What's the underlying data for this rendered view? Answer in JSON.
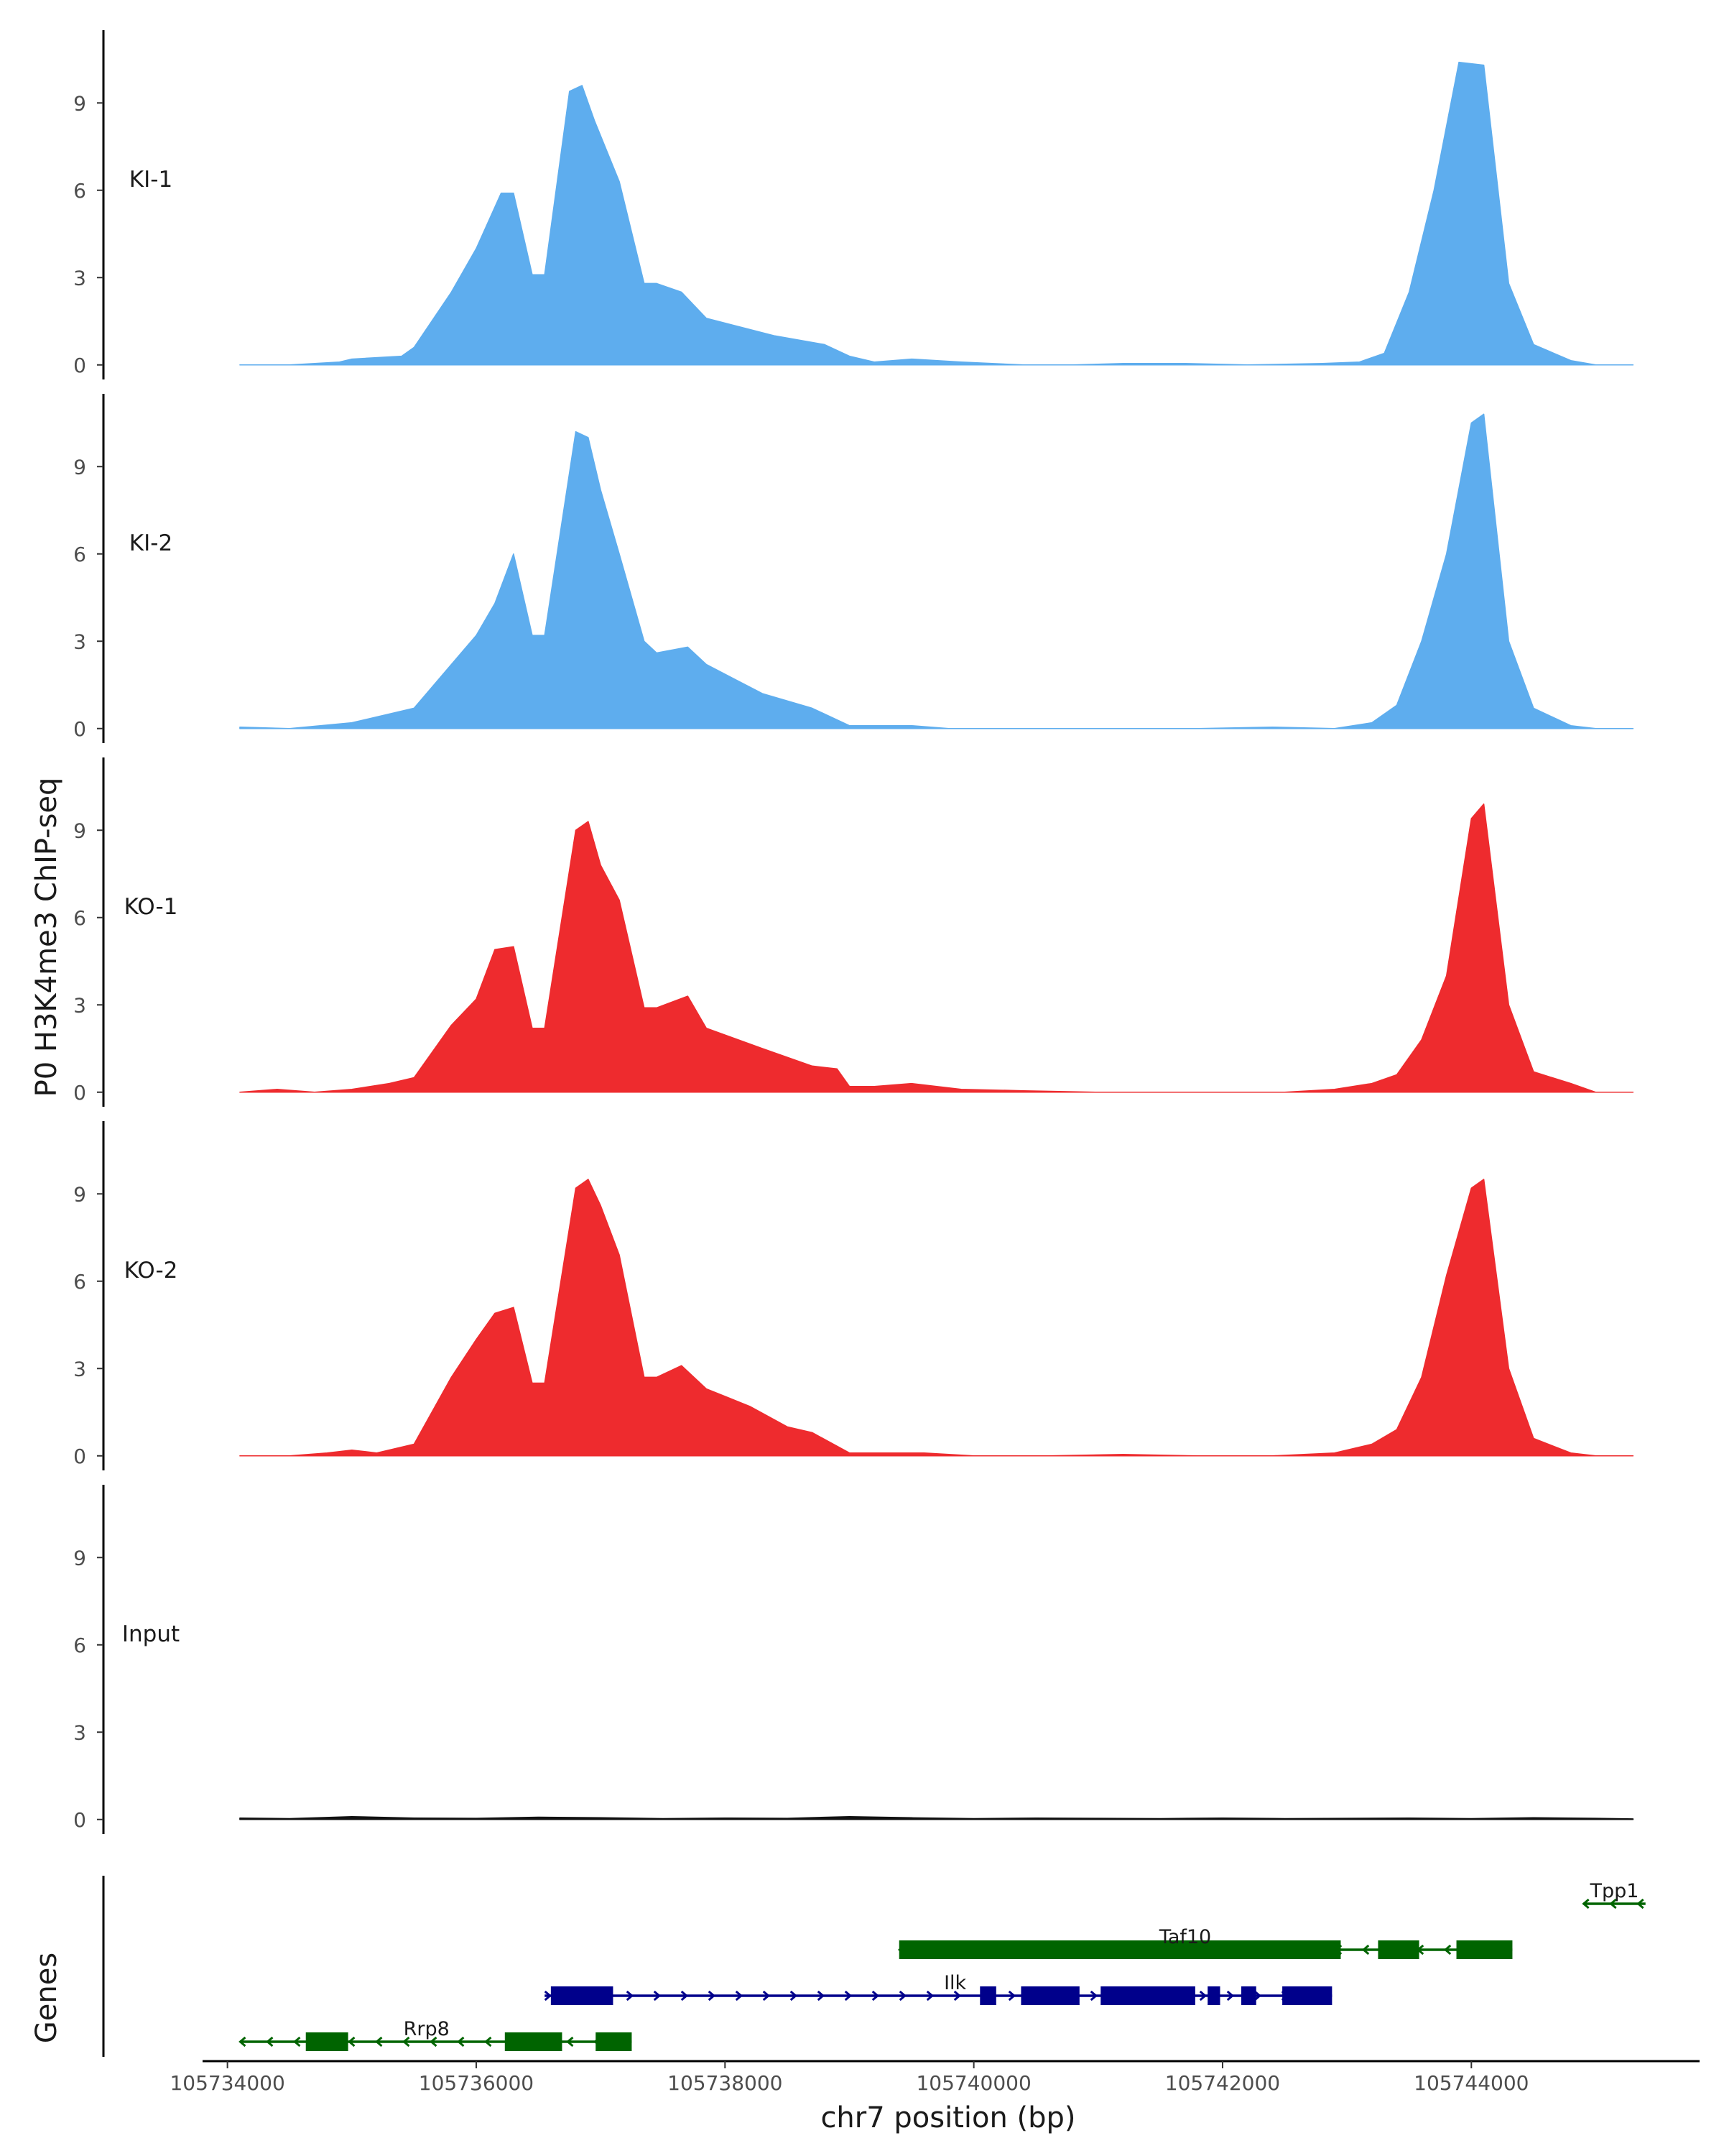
{
  "chart_data": {
    "type": "area",
    "y_axis_title": "P0 H3K4me3 ChIP-seq",
    "x_axis_title": "chr7 position (bp)",
    "x_range": [
      105733800,
      105745800
    ],
    "x_ticks": [
      105734000,
      105736000,
      105738000,
      105740000,
      105742000,
      105744000
    ],
    "y_range": [
      -0.5,
      11.5
    ],
    "y_ticks": [
      0,
      3,
      6,
      9
    ],
    "tracks": [
      {
        "name": "KI-1",
        "color": "#5eadee",
        "x": [
          105734100,
          105734500,
          105734900,
          105735000,
          105735400,
          105735500,
          105735800,
          105736000,
          105736200,
          105736300,
          105736450,
          105736550,
          105736750,
          105736850,
          105736950,
          105737150,
          105737350,
          105737450,
          105737650,
          105737850,
          105738400,
          105738800,
          105739000,
          105739200,
          105739500,
          105739900,
          105740400,
          105740800,
          105741200,
          105741700,
          105742200,
          105742800,
          105743100,
          105743300,
          105743500,
          105743700,
          105743900,
          105744100,
          105744300,
          105744500,
          105744800,
          105745000,
          105745300
        ],
        "values": [
          0,
          0,
          0.1,
          0.2,
          0.3,
          0.6,
          2.5,
          4.0,
          5.9,
          5.9,
          3.1,
          3.1,
          9.4,
          9.6,
          8.4,
          6.3,
          2.8,
          2.8,
          2.5,
          1.6,
          1.0,
          0.7,
          0.3,
          0.1,
          0.2,
          0.1,
          0,
          0,
          0.05,
          0.05,
          0,
          0.05,
          0.1,
          0.4,
          2.5,
          6.0,
          10.4,
          10.3,
          2.8,
          0.7,
          0.15,
          0,
          0
        ]
      },
      {
        "name": "KI-2",
        "color": "#5eadee",
        "x": [
          105734100,
          105734500,
          105735000,
          105735300,
          105735500,
          105735800,
          105736000,
          105736150,
          105736300,
          105736450,
          105736550,
          105736800,
          105736900,
          105737000,
          105737150,
          105737350,
          105737450,
          105737700,
          105737850,
          105738300,
          105738700,
          105739000,
          105739200,
          105739500,
          105739800,
          105740300,
          105740800,
          105741300,
          105741800,
          105742400,
          105742900,
          105743200,
          105743400,
          105743600,
          105743800,
          105744000,
          105744100,
          105744300,
          105744500,
          105744800,
          105745000,
          105745300
        ],
        "values": [
          0.05,
          0,
          0.2,
          0.5,
          0.7,
          2.2,
          3.2,
          4.3,
          6.0,
          3.2,
          3.2,
          10.2,
          10.0,
          8.2,
          6.0,
          3.0,
          2.6,
          2.8,
          2.2,
          1.2,
          0.7,
          0.1,
          0.1,
          0.1,
          0,
          0,
          0,
          0,
          0,
          0.05,
          0,
          0.2,
          0.8,
          3.0,
          6.0,
          10.5,
          10.8,
          3.0,
          0.7,
          0.1,
          0,
          0
        ]
      },
      {
        "name": "KO-1",
        "color": "#ee2b2e",
        "x": [
          105734100,
          105734400,
          105734700,
          105735000,
          105735300,
          105735500,
          105735800,
          105736000,
          105736150,
          105736300,
          105736450,
          105736550,
          105736800,
          105736900,
          105737000,
          105737150,
          105737350,
          105737450,
          105737700,
          105737850,
          105738300,
          105738700,
          105738900,
          105739000,
          105739200,
          105739500,
          105739900,
          105740400,
          105741000,
          105741600,
          105742000,
          105742500,
          105742900,
          105743200,
          105743400,
          105743600,
          105743800,
          105744000,
          105744100,
          105744300,
          105744500,
          105744800,
          105745000,
          105745300
        ],
        "values": [
          0,
          0.1,
          0,
          0.1,
          0.3,
          0.5,
          2.3,
          3.2,
          4.9,
          5.0,
          2.2,
          2.2,
          9.0,
          9.3,
          7.8,
          6.6,
          2.9,
          2.9,
          3.3,
          2.2,
          1.5,
          0.9,
          0.8,
          0.2,
          0.2,
          0.3,
          0.1,
          0.05,
          0,
          0,
          0,
          0,
          0.1,
          0.3,
          0.6,
          1.8,
          4.0,
          9.4,
          9.9,
          3.0,
          0.7,
          0.3,
          0,
          0
        ]
      },
      {
        "name": "KO-2",
        "color": "#ee2b2e",
        "x": [
          105734100,
          105734500,
          105734800,
          105735000,
          105735200,
          105735500,
          105735800,
          105736000,
          105736150,
          105736300,
          105736450,
          105736550,
          105736800,
          105736900,
          105737000,
          105737150,
          105737350,
          105737450,
          105737650,
          105737850,
          105738200,
          105738500,
          105738700,
          105739000,
          105739200,
          105739600,
          105740000,
          105740600,
          105741200,
          105741800,
          105742400,
          105742900,
          105743200,
          105743400,
          105743600,
          105743800,
          105744000,
          105744100,
          105744300,
          105744500,
          105744800,
          105745000,
          105745300
        ],
        "values": [
          0,
          0,
          0.1,
          0.2,
          0.1,
          0.4,
          2.7,
          4.0,
          4.9,
          5.1,
          2.5,
          2.5,
          9.2,
          9.5,
          8.6,
          6.9,
          2.7,
          2.7,
          3.1,
          2.3,
          1.7,
          1.0,
          0.8,
          0.1,
          0.1,
          0.1,
          0,
          0,
          0.05,
          0,
          0,
          0.1,
          0.4,
          0.9,
          2.7,
          6.2,
          9.2,
          9.5,
          3.0,
          0.6,
          0.1,
          0,
          0
        ]
      },
      {
        "name": "Input",
        "color": "#111111",
        "x": [
          105734100,
          105734500,
          105735000,
          105735500,
          105736000,
          105736500,
          105737000,
          105737500,
          105738000,
          105738500,
          105739000,
          105739500,
          105740000,
          105740500,
          105741000,
          105741500,
          105742000,
          105742500,
          105743000,
          105743500,
          105744000,
          105744500,
          105745000,
          105745300
        ],
        "values": [
          0.05,
          0.03,
          0.1,
          0.05,
          0.04,
          0.08,
          0.06,
          0.03,
          0.05,
          0.04,
          0.1,
          0.06,
          0.03,
          0.05,
          0.04,
          0.03,
          0.05,
          0.03,
          0.04,
          0.05,
          0.03,
          0.06,
          0.04,
          0.02
        ]
      }
    ],
    "genes_track": {
      "label": "Genes",
      "genes": [
        {
          "name": "Tpp1",
          "strand": "-",
          "color": "#006400",
          "row": 0,
          "span": [
            105744900,
            105745400
          ],
          "blocks": [],
          "label_x": 105745150
        },
        {
          "name": "Taf10",
          "strand": "-",
          "color": "#006400",
          "row": 1,
          "span": [
            105739400,
            105744330
          ],
          "blocks": [
            [
              105739400,
              105742950
            ],
            [
              105743250,
              105743580
            ],
            [
              105743880,
              105744330
            ]
          ],
          "label_x": 105741700
        },
        {
          "name": "Ilk",
          "strand": "+",
          "color": "#00008b",
          "row": 2,
          "span": [
            105736550,
            105742880
          ],
          "blocks": [
            [
              105736600,
              105737100
            ],
            [
              105740050,
              105740180
            ],
            [
              105740380,
              105740850
            ],
            [
              105741020,
              105741780
            ],
            [
              105741880,
              105741980
            ],
            [
              105742150,
              105742270
            ],
            [
              105742480,
              105742880
            ]
          ],
          "label_x": 105739850
        },
        {
          "name": "Rrp8",
          "strand": "-",
          "color": "#006400",
          "row": 3,
          "span": [
            105734100,
            105737250
          ],
          "blocks": [
            [
              105734630,
              105734970
            ],
            [
              105736230,
              105736690
            ],
            [
              105736960,
              105737250
            ]
          ],
          "label_x": 105735600
        }
      ]
    }
  }
}
